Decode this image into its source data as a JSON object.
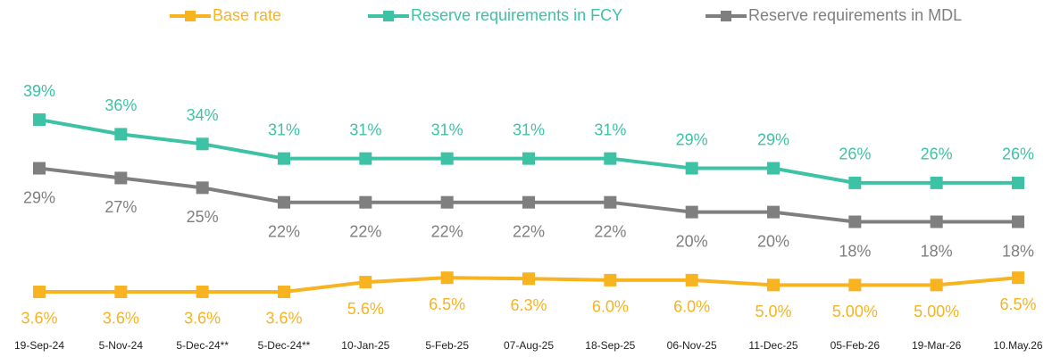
{
  "chart_data": {
    "type": "line",
    "categories": [
      "19-Sep-24",
      "5-Nov-24",
      "5-Dec-24**",
      "5-Dec-24**",
      "10-Jan-25",
      "5-Feb-25",
      "07-Aug-25",
      "18-Sep-25",
      "06-Nov-25",
      "11-Dec-25",
      "05-Feb-26",
      "19-Mar-26",
      "10.May.26"
    ],
    "series": [
      {
        "name": "Base rate",
        "color": "#f7b320",
        "values": [
          3.6,
          3.6,
          3.6,
          3.6,
          5.6,
          6.5,
          6.3,
          6.0,
          6.0,
          5.0,
          5.0,
          5.0,
          6.5
        ],
        "value_labels": [
          "3.6%",
          "3.6%",
          "3.6%",
          "3.6%",
          "5.6%",
          "6.5%",
          "6.3%",
          "6.0%",
          "6.0%",
          "5.0%",
          "5.00%",
          "5.00%",
          "6.5%"
        ]
      },
      {
        "name": "Reserve requirements in FCY",
        "color": "#3ec2a6",
        "values": [
          39,
          36,
          34,
          31,
          31,
          31,
          31,
          31,
          29,
          29,
          26,
          26,
          26
        ],
        "value_labels": [
          "39%",
          "36%",
          "34%",
          "31%",
          "31%",
          "31%",
          "31%",
          "31%",
          "29%",
          "29%",
          "26%",
          "26%",
          "26%"
        ]
      },
      {
        "name": "Reserve requirements in MDL",
        "color": "#7f7f7f",
        "values": [
          29,
          27,
          25,
          22,
          22,
          22,
          22,
          22,
          20,
          20,
          18,
          18,
          18
        ],
        "value_labels": [
          "29%",
          "27%",
          "25%",
          "22%",
          "22%",
          "22%",
          "22%",
          "22%",
          "20%",
          "20%",
          "18%",
          "18%",
          "18%"
        ]
      }
    ],
    "legend": "top"
  }
}
